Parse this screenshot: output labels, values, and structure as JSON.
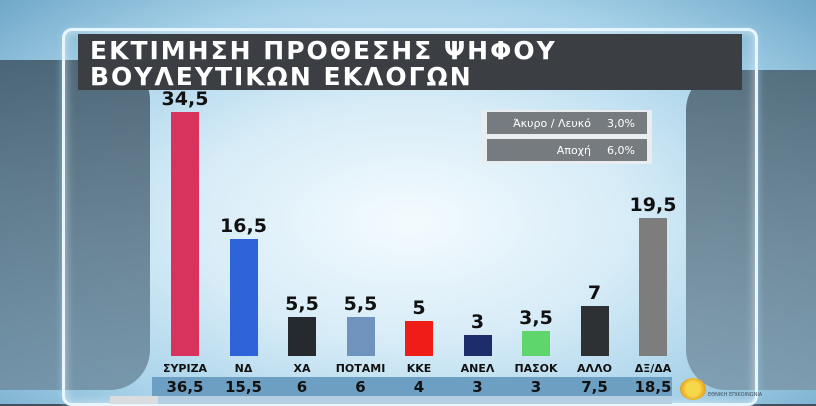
{
  "header": {
    "title_line1": "ΕΚΤΙΜΗΣΗ ΠΡΟΘΕΣΗΣ ΨΗΦΟΥ",
    "title_line2": "ΒΟΥΛΕΥΤΙΚΩΝ ΕΚΛΟΓΩΝ"
  },
  "legend": {
    "rows": [
      {
        "label": "Άκυρο / Λευκό",
        "value": "3,0%"
      },
      {
        "label": "Αποχή",
        "value": "6,0%"
      }
    ]
  },
  "logo": {
    "text": "ΕΘΝΙΚΗ ΕΠΙΚΟΙΝΩΝΙΑ"
  },
  "chart_data": {
    "type": "bar",
    "categories": [
      "ΣΥΡΙΖΑ",
      "ΝΔ",
      "ΧΑ",
      "ΠΟΤΑΜΙ",
      "ΚΚΕ",
      "ΑΝΕΛ",
      "ΠΑΣΟΚ",
      "ΑΛΛΟ",
      "ΔΞ/ΔΑ"
    ],
    "values": [
      34.5,
      16.5,
      5.5,
      5.5,
      5,
      3,
      3.5,
      7,
      19.5
    ],
    "value_labels": [
      "34,5",
      "16,5",
      "5,5",
      "5,5",
      "5",
      "3",
      "3,5",
      "7",
      "19,5"
    ],
    "previous_labels": [
      "36,5",
      "15,5",
      "6",
      "6",
      "4",
      "3",
      "3",
      "7,5",
      "18,5"
    ],
    "colors": [
      "#d7335d",
      "#2f64d8",
      "#262a2e",
      "#6f93bd",
      "#ef1c17",
      "#1d2c6a",
      "#5ed66b",
      "#2e3134",
      "#7d7d7d"
    ],
    "ylim": [
      0,
      34.5
    ],
    "grid": false
  }
}
